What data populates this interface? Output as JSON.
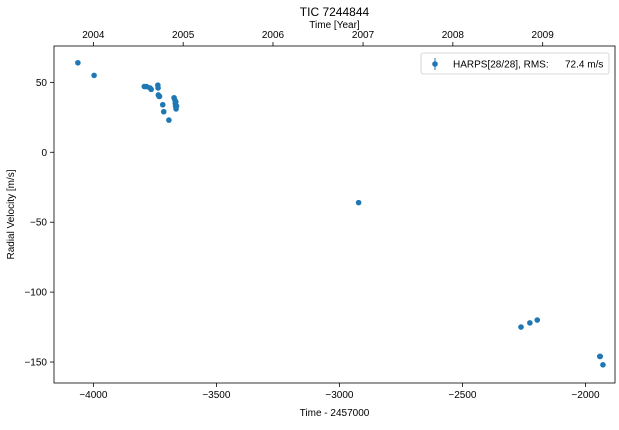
{
  "chart_data": {
    "type": "scatter",
    "title": "TIC 7244844",
    "xlabel": "Time - 2457000",
    "ylabel": "Radial Velocity [m/s]",
    "top_xlabel": "Time [Year]",
    "xlim": [
      -4160,
      -1880
    ],
    "ylim": [
      -165,
      76
    ],
    "xticks": [
      -4000,
      -3500,
      -3000,
      -2500,
      -2000
    ],
    "xtick_labels": [
      "−4000",
      "−3500",
      "−3000",
      "−2500",
      "−2000"
    ],
    "yticks": [
      50,
      0,
      -50,
      -100,
      -150
    ],
    "ytick_labels": [
      "50",
      "0",
      "−50",
      "−100",
      "−150"
    ],
    "top_ticks": [
      {
        "label": "2004",
        "time": -4000
      },
      {
        "label": "2005",
        "time": -3635
      },
      {
        "label": "2006",
        "time": -3270
      },
      {
        "label": "2007",
        "time": -2904
      },
      {
        "label": "2008",
        "time": -2539
      },
      {
        "label": "2009",
        "time": -2174
      }
    ],
    "grid": false,
    "legend_position": "top-right",
    "color": "#1f77b4",
    "series": [
      {
        "name": "HARPS[28/28], RMS:",
        "rms_value": "72.4 m/s",
        "x": [
          -4063,
          -3997,
          -3793,
          -3784,
          -3770,
          -3765,
          -3738,
          -3737,
          -3736,
          -3733,
          -3731,
          -3718,
          -3714,
          -3693,
          -3672,
          -3668,
          -3667,
          -3666,
          -3665,
          -3664,
          -3662,
          -2922,
          -2262,
          -2226,
          -2196,
          -1942,
          -1940,
          -1929
        ],
        "y": [
          64,
          55,
          47,
          47,
          46,
          45,
          48,
          46,
          41,
          40,
          40,
          34,
          29,
          23,
          39,
          37,
          35,
          33,
          36,
          31,
          33,
          -36,
          -125,
          -122,
          -120,
          -146,
          -146,
          -152
        ]
      }
    ]
  }
}
